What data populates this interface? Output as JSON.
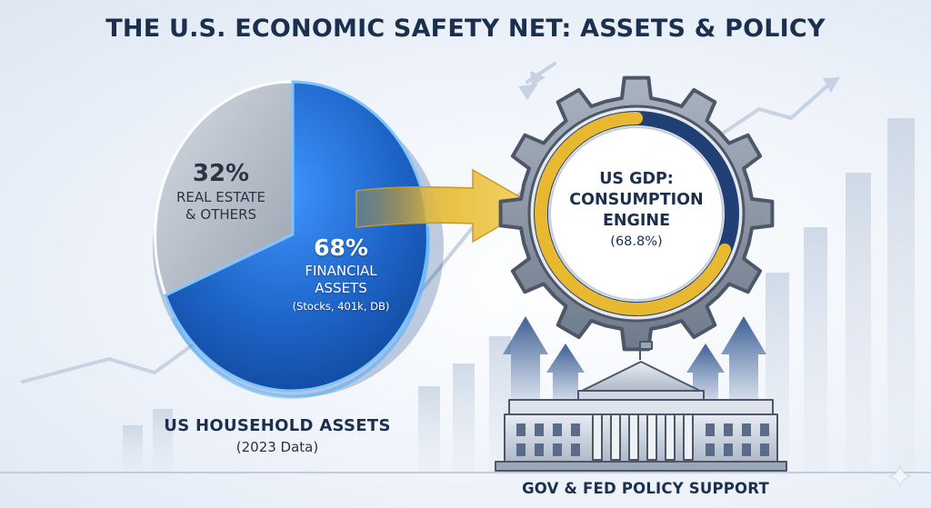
{
  "title": "THE U.S. ECONOMIC SAFETY NET: ASSETS & POLICY",
  "chart_data": {
    "type": "pie",
    "slices": [
      {
        "percent_label": "32%",
        "label": "REAL ESTATE & OTHERS",
        "label_lines": [
          "REAL ESTATE",
          "& OTHERS"
        ],
        "value": 32,
        "color": "#b9c2cc"
      },
      {
        "percent_label": "68%",
        "label": "FINANCIAL ASSETS",
        "label_lines": [
          "FINANCIAL",
          "ASSETS"
        ],
        "sublabel": "(Stocks, 401k, DB)",
        "value": 68,
        "color": "#1f6fd1"
      }
    ],
    "title": "US HOUSEHOLD ASSETS",
    "subtitle": "(2023 Data)"
  },
  "gear": {
    "line1": "US GDP:",
    "line2": "CONSUMPTION",
    "line3": "ENGINE",
    "value": "(68.8%)",
    "fill_fraction": 0.688
  },
  "policy_label": "GOV & FED POLICY SUPPORT",
  "colors": {
    "navy": "#1b2f4f",
    "blue": "#1f6fd1",
    "gold": "#e8b830",
    "steel": "#7c8696"
  },
  "icons": [
    "arrow-icon",
    "gear-icon",
    "capitol-building-icon",
    "up-arrow-icon",
    "sparkle-icon"
  ]
}
